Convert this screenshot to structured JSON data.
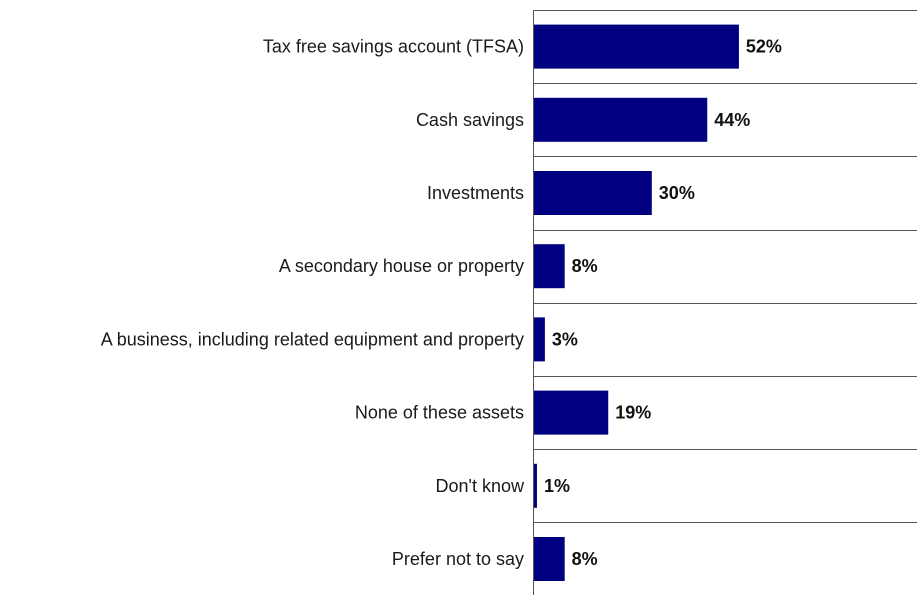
{
  "chart_data": {
    "type": "bar",
    "orientation": "horizontal",
    "categories": [
      "Tax free savings account (TFSA)",
      "Cash savings",
      "Investments",
      "A secondary house or property",
      "A business, including related equipment and property",
      "None of these assets",
      "Don't know",
      "Prefer not to say"
    ],
    "values": [
      52,
      44,
      30,
      8,
      3,
      19,
      1,
      8
    ],
    "value_labels": [
      "52%",
      "44%",
      "30%",
      "8%",
      "3%",
      "19%",
      "1%",
      "8%"
    ],
    "unit": "%",
    "xlim": [
      0,
      100
    ],
    "bar_color": "#000080",
    "grid": false,
    "legend": "none"
  }
}
